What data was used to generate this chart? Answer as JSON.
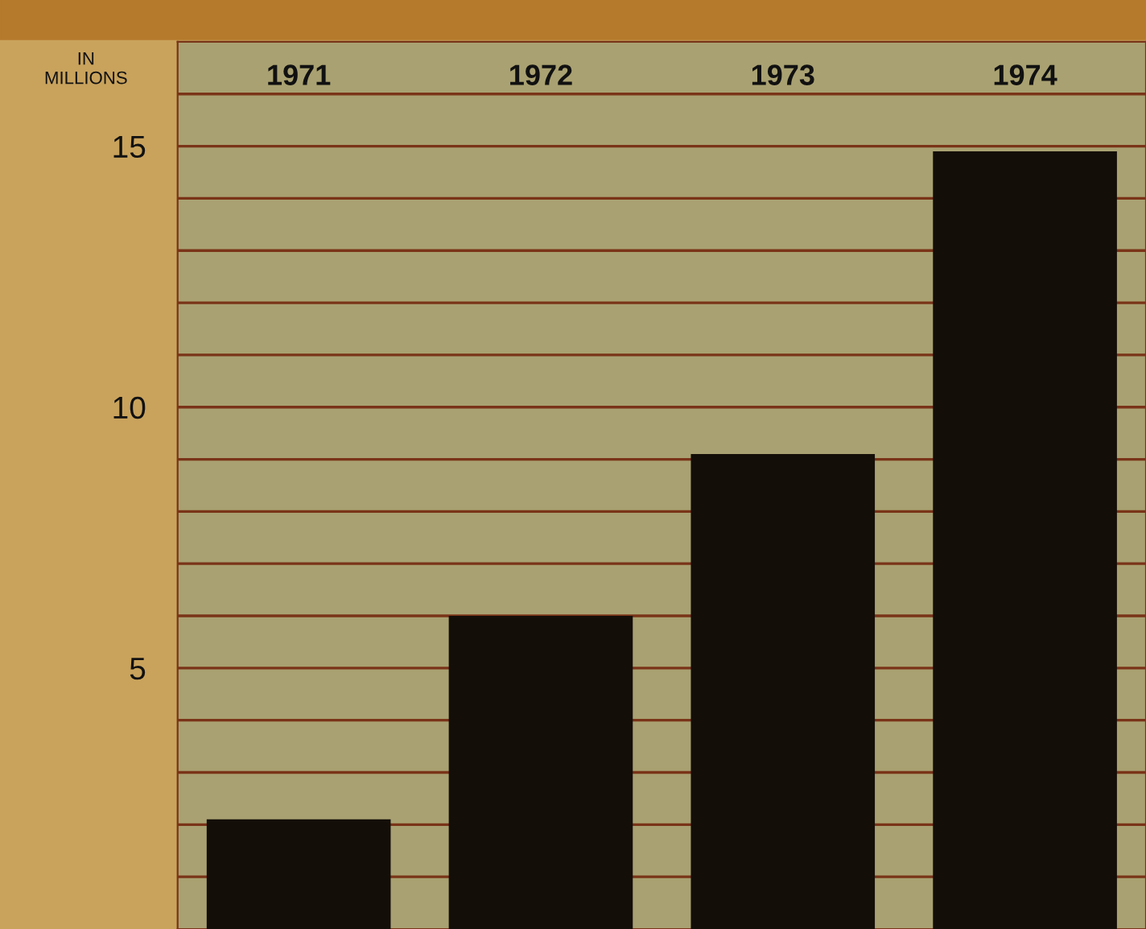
{
  "chart_data": {
    "type": "bar",
    "ylabel": "IN\nMILLIONS",
    "categories": [
      "1971",
      "1972",
      "1973",
      "1974"
    ],
    "values": [
      2.1,
      6.0,
      9.1,
      14.9
    ],
    "color": "#140e09",
    "ylim": [
      0,
      17
    ],
    "yticks": [
      {
        "value": 1,
        "label": null
      },
      {
        "value": 2,
        "label": null
      },
      {
        "value": 3,
        "label": null
      },
      {
        "value": 4,
        "label": null
      },
      5,
      {
        "value": 6,
        "label": null
      },
      {
        "value": 7,
        "label": null
      },
      {
        "value": 8,
        "label": null
      },
      {
        "value": 9,
        "label": null
      },
      10,
      {
        "value": 11,
        "label": null
      },
      {
        "value": 12,
        "label": null
      },
      {
        "value": 13,
        "label": null
      },
      {
        "value": 14,
        "label": null
      },
      15,
      {
        "value": 16,
        "label": null
      }
    ],
    "grid": "y"
  }
}
